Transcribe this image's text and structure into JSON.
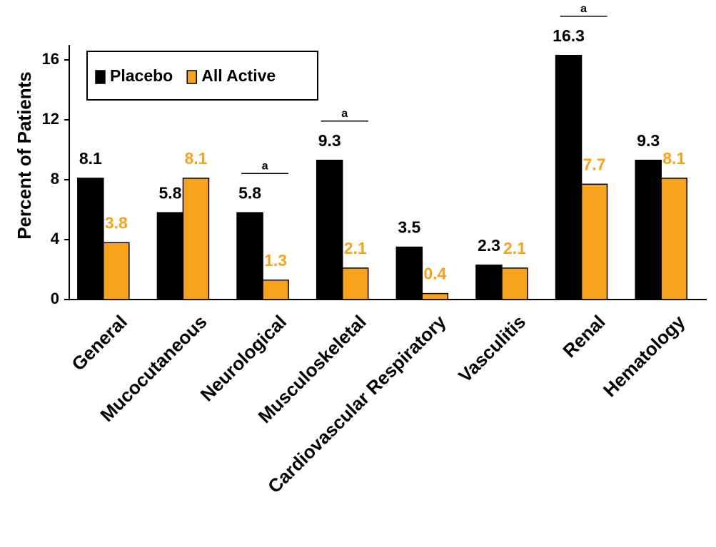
{
  "chart_data": {
    "type": "bar",
    "y_label": "Percent of Patients",
    "categories": [
      "General",
      "Mucocutaneous",
      "Neurological",
      "Musculoskeletal",
      "Cardiovascular Respiratory",
      "Vasculitis",
      "Renal",
      "Hematology"
    ],
    "series": [
      {
        "name": "Placebo",
        "color": "#000000",
        "values": [
          8.1,
          5.8,
          5.8,
          9.3,
          3.5,
          2.3,
          16.3,
          9.3
        ]
      },
      {
        "name": "All Active",
        "color": "#f7a21b",
        "values": [
          3.8,
          8.1,
          1.3,
          2.1,
          0.4,
          2.1,
          7.7,
          8.1
        ]
      }
    ],
    "significance_labels": [
      null,
      null,
      "a",
      "a",
      null,
      null,
      "a",
      null
    ],
    "ylim": [
      0,
      17
    ],
    "yticks": [
      0,
      4,
      8,
      12,
      16
    ],
    "legend": "top-left",
    "grid": false
  }
}
